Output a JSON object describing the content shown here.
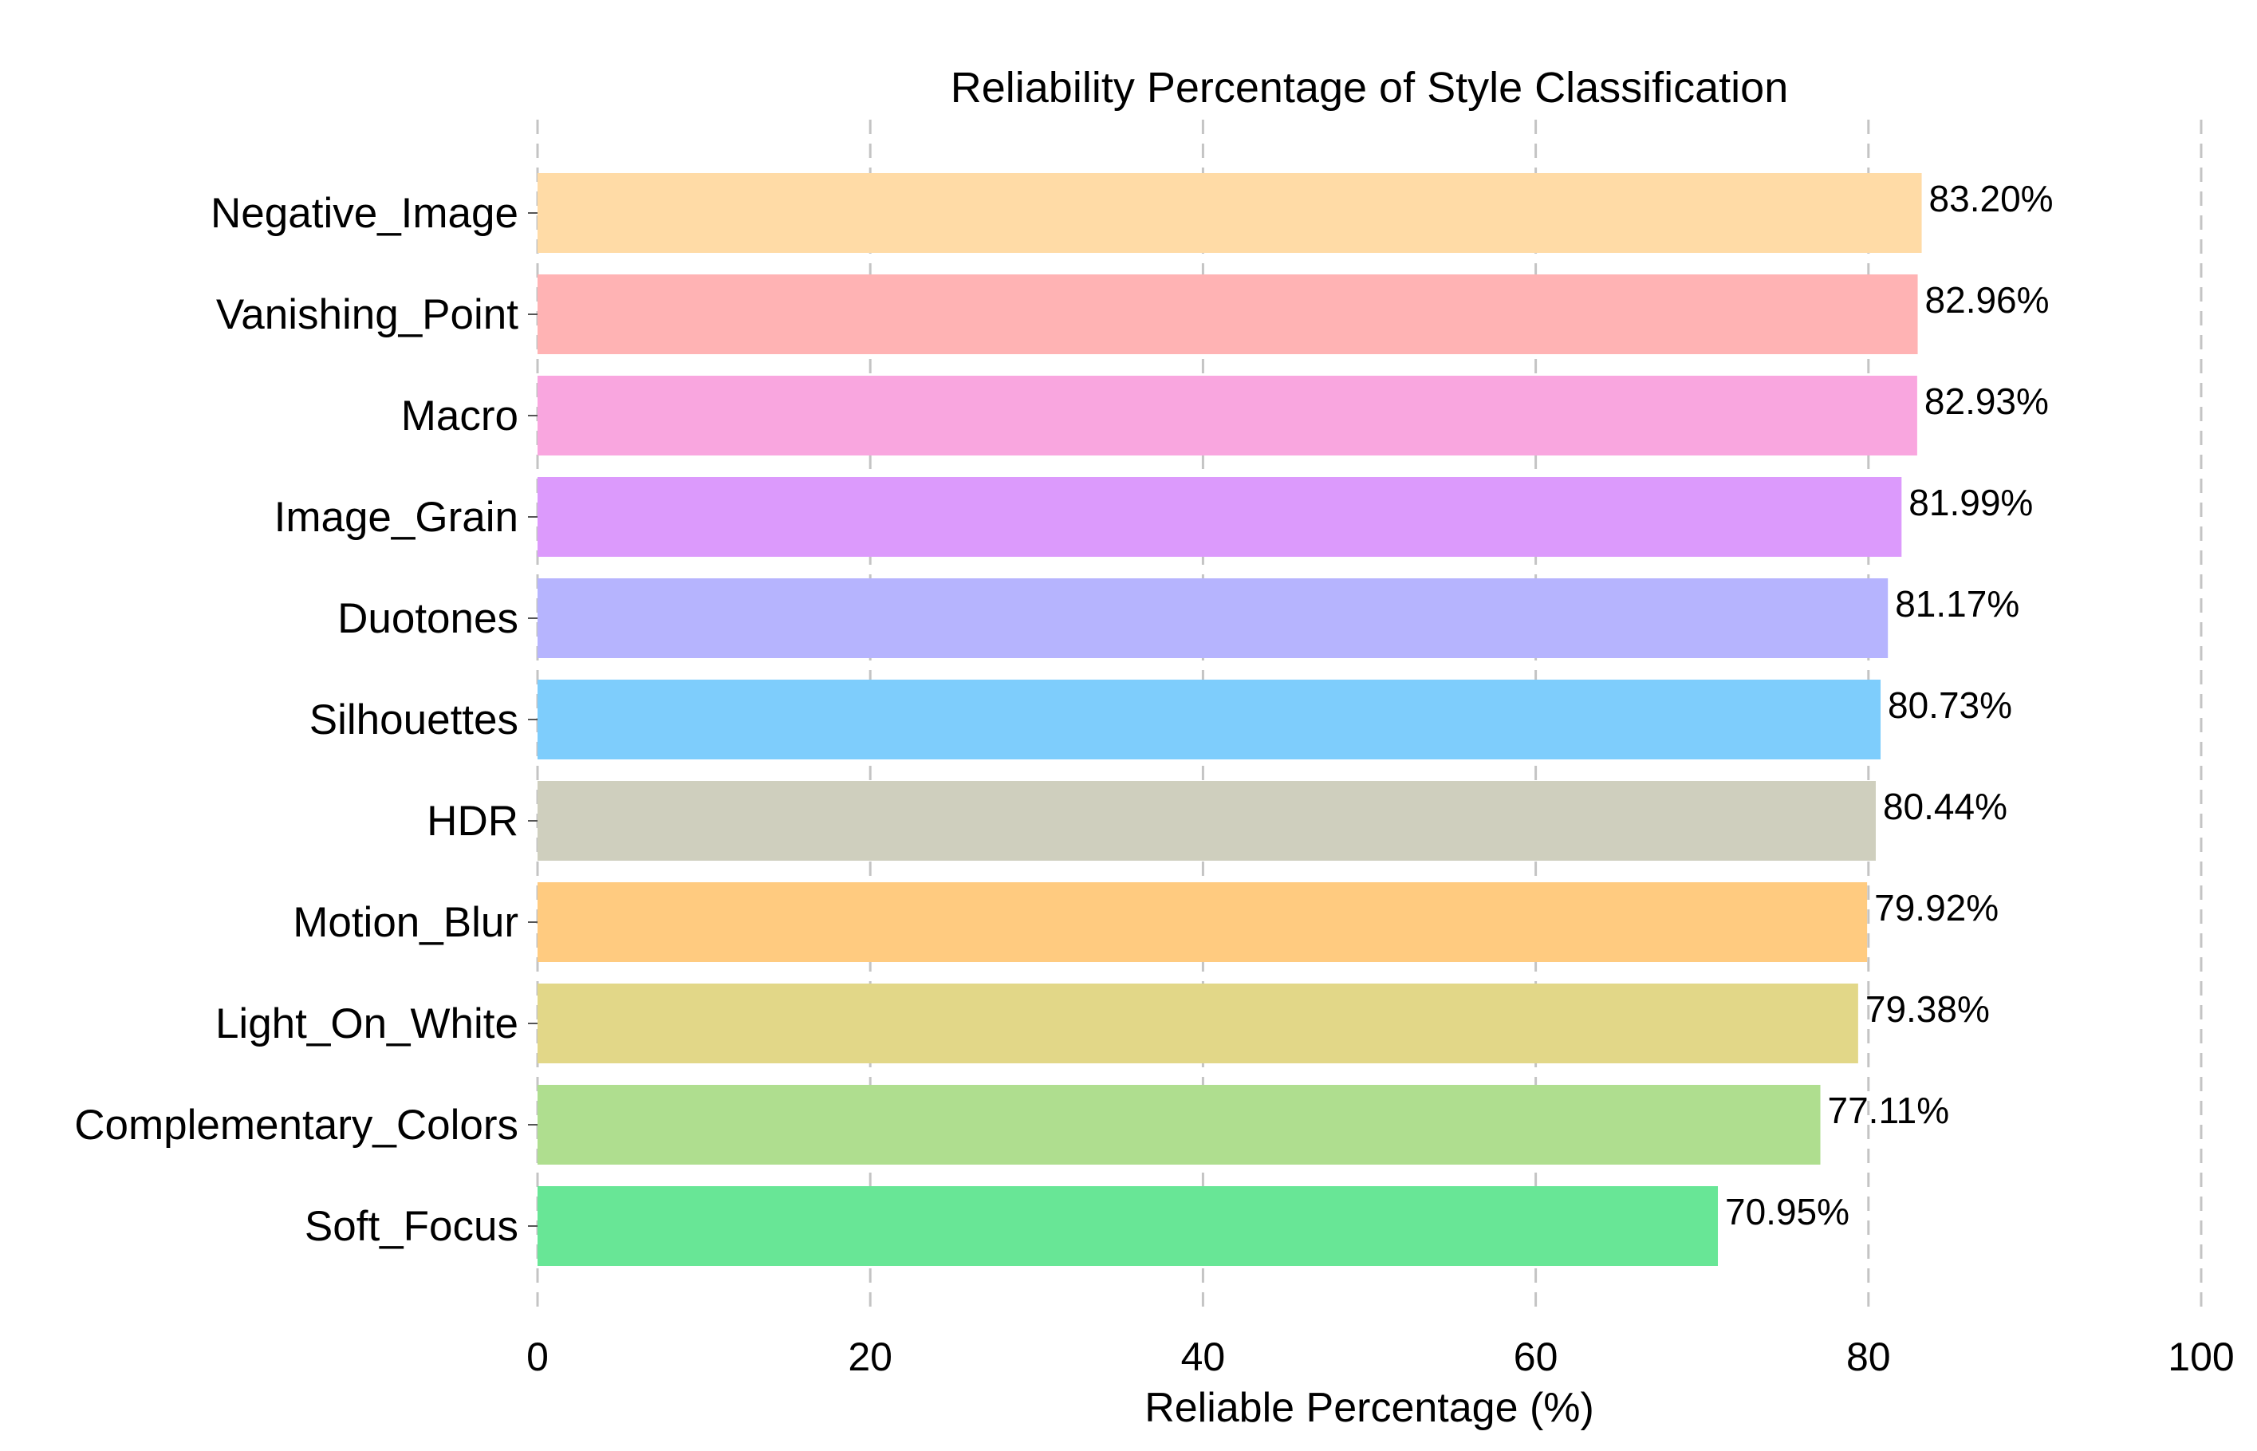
{
  "chart_data": {
    "type": "bar",
    "orientation": "horizontal",
    "title": "Reliability Percentage of Style Classification",
    "xlabel": "Reliable Percentage (%)",
    "ylabel": "",
    "xlim": [
      0,
      100
    ],
    "xticks": [
      0,
      20,
      40,
      60,
      80,
      100
    ],
    "grid": "vertical dashed",
    "categories": [
      "Negative_Image",
      "Vanishing_Point",
      "Macro",
      "Image_Grain",
      "Duotones",
      "Silhouettes",
      "HDR",
      "Motion_Blur",
      "Light_On_White",
      "Complementary_Colors",
      "Soft_Focus"
    ],
    "values": [
      83.2,
      82.96,
      82.93,
      81.99,
      81.17,
      80.73,
      80.44,
      79.92,
      79.38,
      77.11,
      70.95
    ],
    "value_labels": [
      "83.20%",
      "82.96%",
      "82.93%",
      "81.99%",
      "81.17%",
      "80.73%",
      "80.44%",
      "79.92%",
      "79.38%",
      "77.11%",
      "70.95%"
    ],
    "colors": [
      "#FFDBA6",
      "#FFB3B4",
      "#F9A6DF",
      "#DC9AFC",
      "#B6B4FE",
      "#7ECDFC",
      "#CFCFBE",
      "#FFCB80",
      "#E2D788",
      "#AFDE8F",
      "#68E696"
    ]
  }
}
